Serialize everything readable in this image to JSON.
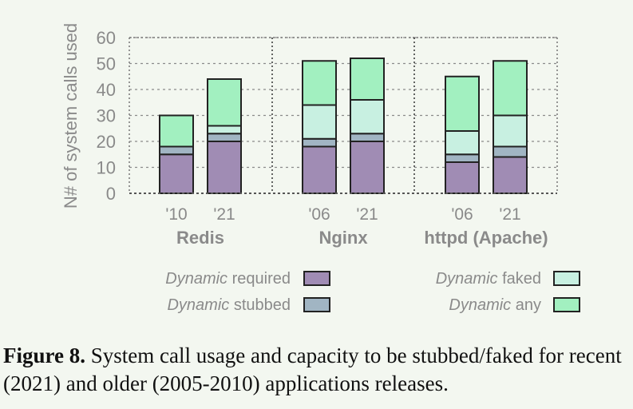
{
  "chart_data": {
    "type": "bar",
    "stacked": true,
    "ylabel": "N# of system calls used",
    "ylim": [
      0,
      60
    ],
    "yticks": [
      0,
      10,
      20,
      30,
      40,
      50,
      60
    ],
    "grid": true,
    "groups": [
      {
        "name": "Redis",
        "categories": [
          "'10",
          "'21"
        ]
      },
      {
        "name": "Nginx",
        "categories": [
          "'06",
          "'21"
        ]
      },
      {
        "name": "httpd (Apache)",
        "categories": [
          "'06",
          "'21"
        ]
      }
    ],
    "series": [
      {
        "name": "required",
        "emphasis": "Dynamic",
        "color": "#a08cb4",
        "values": [
          15,
          20,
          18,
          20,
          12,
          14
        ]
      },
      {
        "name": "stubbed",
        "emphasis": "Dynamic",
        "color": "#a1b5c3",
        "values": [
          3,
          3,
          3,
          3,
          3,
          4
        ]
      },
      {
        "name": "faked",
        "emphasis": "Dynamic",
        "color": "#c8f0e1",
        "values": [
          0,
          3,
          13,
          13,
          9,
          12
        ]
      },
      {
        "name": "any",
        "emphasis": "Dynamic",
        "color": "#a2f0c0",
        "values": [
          12,
          18,
          17,
          16,
          21,
          21
        ]
      }
    ],
    "legend_position": "bottom"
  },
  "caption": {
    "label": "Figure 8.",
    "text": "System call usage and capacity to be stubbed/faked for recent (2021) and older (2005-2010) applications releases."
  }
}
